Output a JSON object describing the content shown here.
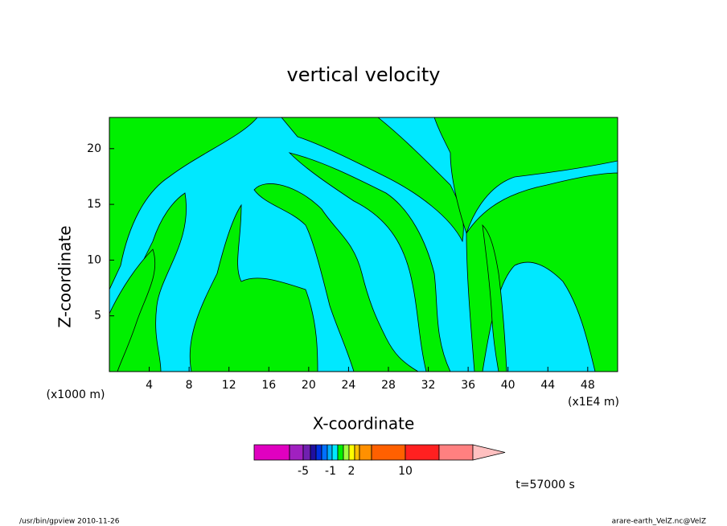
{
  "chart_data": {
    "type": "contour",
    "title": "vertical velocity",
    "x_label": "X-coordinate",
    "y_label": "Z-coordinate",
    "y_unit": "(x1000 m)",
    "x_unit": "(x1E4 m)",
    "xlim": [
      0,
      51
    ],
    "xticks": [
      4,
      8,
      12,
      16,
      20,
      24,
      28,
      32,
      36,
      40,
      44,
      48
    ],
    "ylim": [
      0,
      22.8
    ],
    "yticks": [
      5,
      10,
      15,
      20
    ],
    "field_colors": [
      "#00e8ff",
      "#00f000"
    ],
    "colorbar": {
      "colors": [
        "#e000c0",
        "#a020c0",
        "#7020b0",
        "#2010a0",
        "#0030e0",
        "#0070ff",
        "#00b0ff",
        "#00e8ff",
        "#00f000",
        "#a0ff40",
        "#ffff00",
        "#ffc000",
        "#ff9000",
        "#ff6000",
        "#ff2020",
        "#ff8080",
        "#ffc0c0"
      ],
      "ticks": [
        -5,
        -1,
        2,
        10
      ]
    },
    "annotation": "t=57000 s",
    "footer_left": "/usr/bin/gpview  2010-11-26",
    "footer_right": "arare-earth_VelZ.nc@VelZ"
  }
}
